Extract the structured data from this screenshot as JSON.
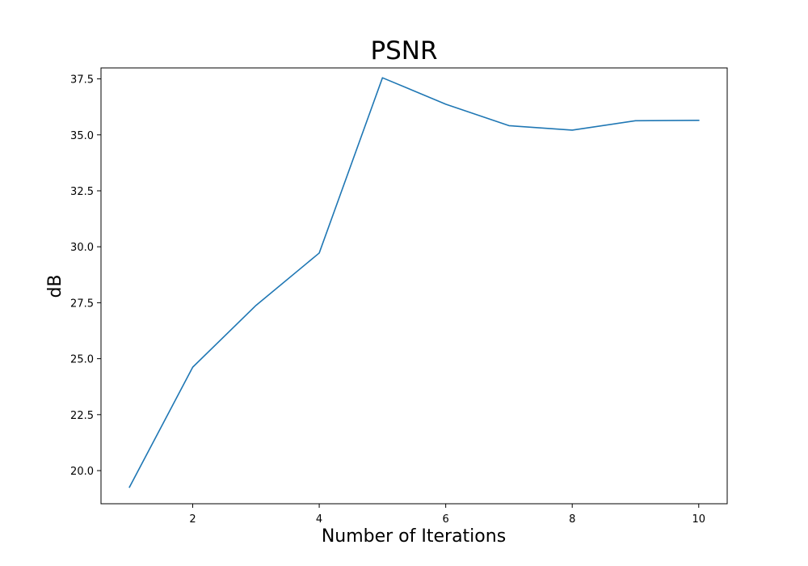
{
  "chart_data": {
    "type": "line",
    "title": "PSNR",
    "xlabel": "Number of Iterations",
    "ylabel": "dB",
    "x": [
      1,
      2,
      3,
      4,
      5,
      6,
      7,
      8,
      9,
      10
    ],
    "series": [
      {
        "values": [
          19.26,
          24.62,
          27.38,
          29.72,
          37.55,
          36.37,
          35.41,
          35.21,
          35.63,
          35.65
        ],
        "color": "#1f77b4"
      }
    ],
    "xlim": [
      0.55,
      10.45
    ],
    "ylim": [
      18.52,
      37.99
    ],
    "xticks": [
      2,
      4,
      6,
      8,
      10
    ],
    "xtick_labels": [
      "2",
      "4",
      "6",
      "8",
      "10"
    ],
    "yticks": [
      20.0,
      22.5,
      25.0,
      27.5,
      30.0,
      32.5,
      35.0,
      37.5
    ],
    "ytick_labels": [
      "20.0",
      "22.5",
      "25.0",
      "27.5",
      "30.0",
      "32.5",
      "35.0",
      "37.5"
    ],
    "grid": false,
    "legend": false
  }
}
